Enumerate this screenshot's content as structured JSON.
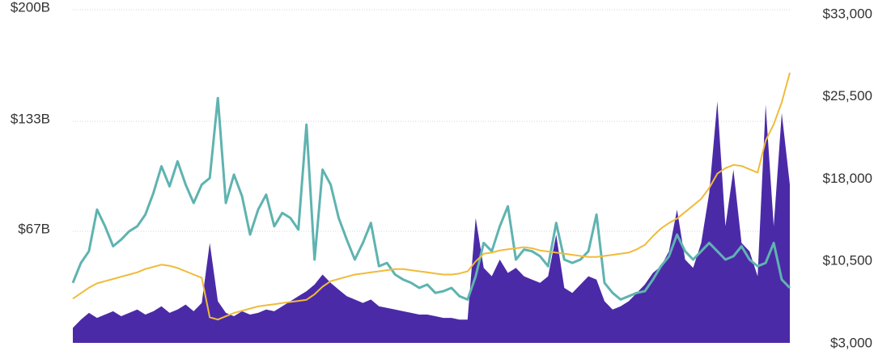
{
  "chart_data": {
    "type": "line",
    "ylim": [
      0,
      200
    ],
    "yticks": [
      {
        "value": 67,
        "label": "$67B"
      },
      {
        "value": 133,
        "label": "$133B"
      },
      {
        "value": 200,
        "label": "$200B"
      }
    ],
    "y2lim": [
      3000,
      33000
    ],
    "y2ticks": [
      {
        "value": 3000,
        "label": "$3,000"
      },
      {
        "value": 10500,
        "label": "$10,500"
      },
      {
        "value": 18000,
        "label": "$18,000"
      },
      {
        "value": 25500,
        "label": "$25,500"
      },
      {
        "value": 33000,
        "label": "$33,000"
      }
    ],
    "grid": true,
    "series": [
      {
        "kind": "area",
        "color": "#4b2aa8",
        "values": [
          9,
          14,
          18,
          15,
          17,
          19,
          16,
          18,
          20,
          17,
          19,
          22,
          18,
          20,
          23,
          19,
          24,
          60,
          25,
          18,
          16,
          19,
          17,
          18,
          20,
          19,
          22,
          25,
          28,
          31,
          35,
          41,
          36,
          32,
          28,
          26,
          24,
          26,
          22,
          21,
          20,
          19,
          18,
          17,
          17,
          16,
          15,
          15,
          14,
          14,
          75,
          45,
          40,
          50,
          42,
          45,
          40,
          38,
          36,
          40,
          65,
          33,
          30,
          35,
          40,
          38,
          25,
          20,
          22,
          25,
          30,
          35,
          42,
          46,
          55,
          80,
          50,
          45,
          60,
          90,
          145,
          70,
          104,
          60,
          55,
          40,
          143,
          70,
          138,
          95
        ]
      },
      {
        "kind": "line",
        "color": "#5fb3b0",
        "values": [
          36,
          48,
          55,
          80,
          70,
          58,
          62,
          67,
          70,
          77,
          90,
          106,
          94,
          109,
          95,
          84,
          95,
          99,
          147,
          84,
          101,
          88,
          65,
          80,
          89,
          70,
          78,
          75,
          68,
          131,
          50,
          104,
          95,
          75,
          62,
          50,
          60,
          72,
          46,
          48,
          41,
          38,
          36,
          33,
          35,
          30,
          31,
          33,
          28,
          26,
          40,
          60,
          55,
          70,
          82,
          50,
          56,
          55,
          52,
          46,
          72,
          50,
          48,
          50,
          55,
          77,
          36,
          30,
          26,
          28,
          30,
          31,
          38,
          46,
          52,
          65,
          55,
          50,
          55,
          60,
          55,
          50,
          52,
          58,
          50,
          46,
          48,
          60,
          38,
          33
        ]
      },
      {
        "kind": "line",
        "axis": "y2",
        "color": "#f0bb3a",
        "values": [
          7100,
          7600,
          8100,
          8500,
          8700,
          8900,
          9100,
          9300,
          9500,
          9800,
          10000,
          10200,
          10100,
          9900,
          9600,
          9300,
          9000,
          5400,
          5200,
          5500,
          5800,
          6000,
          6200,
          6400,
          6500,
          6600,
          6700,
          6800,
          6900,
          7000,
          7500,
          8200,
          8700,
          8900,
          9100,
          9300,
          9400,
          9500,
          9600,
          9700,
          9800,
          9800,
          9700,
          9600,
          9500,
          9400,
          9300,
          9300,
          9400,
          9600,
          10500,
          11200,
          11300,
          11500,
          11600,
          11700,
          11800,
          11700,
          11500,
          11400,
          11300,
          11200,
          11100,
          11000,
          10900,
          10900,
          11000,
          11100,
          11200,
          11300,
          11600,
          12000,
          12800,
          13500,
          14000,
          14400,
          15000,
          15600,
          16200,
          17200,
          18500,
          19000,
          19300,
          19200,
          18900,
          18600,
          21500,
          23000,
          25000,
          27700
        ]
      }
    ]
  }
}
